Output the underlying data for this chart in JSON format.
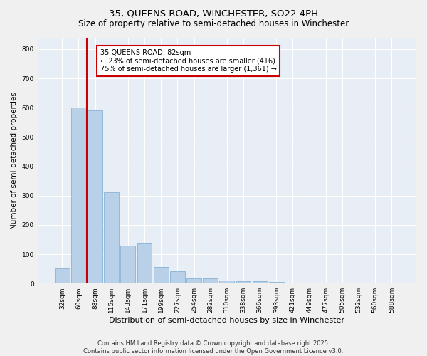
{
  "title1": "35, QUEENS ROAD, WINCHESTER, SO22 4PH",
  "title2": "Size of property relative to semi-detached houses in Winchester",
  "xlabel": "Distribution of semi-detached houses by size in Winchester",
  "ylabel": "Number of semi-detached properties",
  "categories": [
    "32sqm",
    "60sqm",
    "88sqm",
    "115sqm",
    "143sqm",
    "171sqm",
    "199sqm",
    "227sqm",
    "254sqm",
    "282sqm",
    "310sqm",
    "338sqm",
    "366sqm",
    "393sqm",
    "421sqm",
    "449sqm",
    "477sqm",
    "505sqm",
    "532sqm",
    "560sqm",
    "588sqm"
  ],
  "values": [
    52,
    600,
    590,
    312,
    130,
    140,
    57,
    42,
    18,
    17,
    11,
    8,
    7,
    5,
    4,
    3,
    2,
    2,
    1,
    1,
    1
  ],
  "bar_color": "#b8d0e8",
  "bar_edge_color": "#7aaad0",
  "vline_color": "#cc0000",
  "annotation_text": "35 QUEENS ROAD: 82sqm\n← 23% of semi-detached houses are smaller (416)\n75% of semi-detached houses are larger (1,361) →",
  "annotation_box_color": "#ffffff",
  "annotation_box_edge": "#cc0000",
  "ylim": [
    0,
    840
  ],
  "yticks": [
    0,
    100,
    200,
    300,
    400,
    500,
    600,
    700,
    800
  ],
  "background_color": "#e8eef5",
  "grid_color": "#ffffff",
  "footer1": "Contains HM Land Registry data © Crown copyright and database right 2025.",
  "footer2": "Contains public sector information licensed under the Open Government Licence v3.0."
}
